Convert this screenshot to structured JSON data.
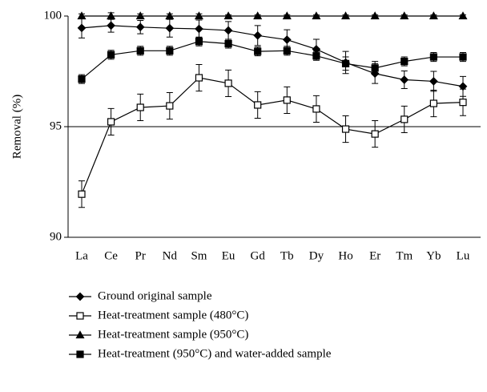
{
  "chart_data": {
    "type": "line",
    "y_label": "Removal (%)",
    "categories": [
      "La",
      "Ce",
      "Pr",
      "Nd",
      "Sm",
      "Eu",
      "Gd",
      "Tb",
      "Dy",
      "Ho",
      "Er",
      "Tm",
      "Yb",
      "Lu"
    ],
    "ylim": [
      90,
      100
    ],
    "yticks": [
      90,
      95,
      100
    ],
    "reference_line": 95,
    "series": [
      {
        "name": "Ground original sample",
        "color": "#000000",
        "marker": "diamond",
        "values": [
          99.46,
          99.57,
          99.5,
          99.45,
          99.42,
          99.35,
          99.12,
          98.93,
          98.5,
          97.9,
          97.4,
          97.12,
          97.05,
          96.82
        ],
        "errors": [
          0.45,
          0.3,
          0.3,
          0.4,
          0.4,
          0.4,
          0.45,
          0.45,
          0.45,
          0.5,
          0.45,
          0.4,
          0.45,
          0.45
        ]
      },
      {
        "name": "Heat-treatment sample (480°C)",
        "color": "#000000",
        "marker": "open-square",
        "values": [
          91.95,
          95.22,
          95.87,
          95.94,
          97.21,
          96.96,
          95.98,
          96.2,
          95.8,
          94.89,
          94.67,
          95.33,
          96.05,
          96.1
        ],
        "errors": [
          0.6,
          0.6,
          0.6,
          0.6,
          0.6,
          0.6,
          0.6,
          0.6,
          0.6,
          0.6,
          0.6,
          0.6,
          0.6,
          0.6
        ]
      },
      {
        "name": "Heat-treatment sample (950°C)",
        "color": "#000000",
        "marker": "triangle",
        "values": [
          100,
          100,
          100,
          100,
          100,
          100,
          100,
          100,
          100,
          100,
          100,
          100,
          100,
          100
        ],
        "errors": [
          0.1,
          0.15,
          0.1,
          0.1,
          0.1,
          0.05,
          0.05,
          0.05,
          0.05,
          0.05,
          0.05,
          0.05,
          0.05,
          0.05
        ]
      },
      {
        "name": "Heat-treatment (950°C) and water-added sample",
        "color": "#000000",
        "marker": "square",
        "values": [
          97.15,
          98.25,
          98.43,
          98.43,
          98.85,
          98.75,
          98.4,
          98.43,
          98.2,
          97.85,
          97.65,
          97.95,
          98.15,
          98.15
        ],
        "errors": [
          0.2,
          0.2,
          0.2,
          0.2,
          0.2,
          0.2,
          0.2,
          0.2,
          0.2,
          0.3,
          0.3,
          0.2,
          0.2,
          0.2
        ]
      }
    ]
  }
}
